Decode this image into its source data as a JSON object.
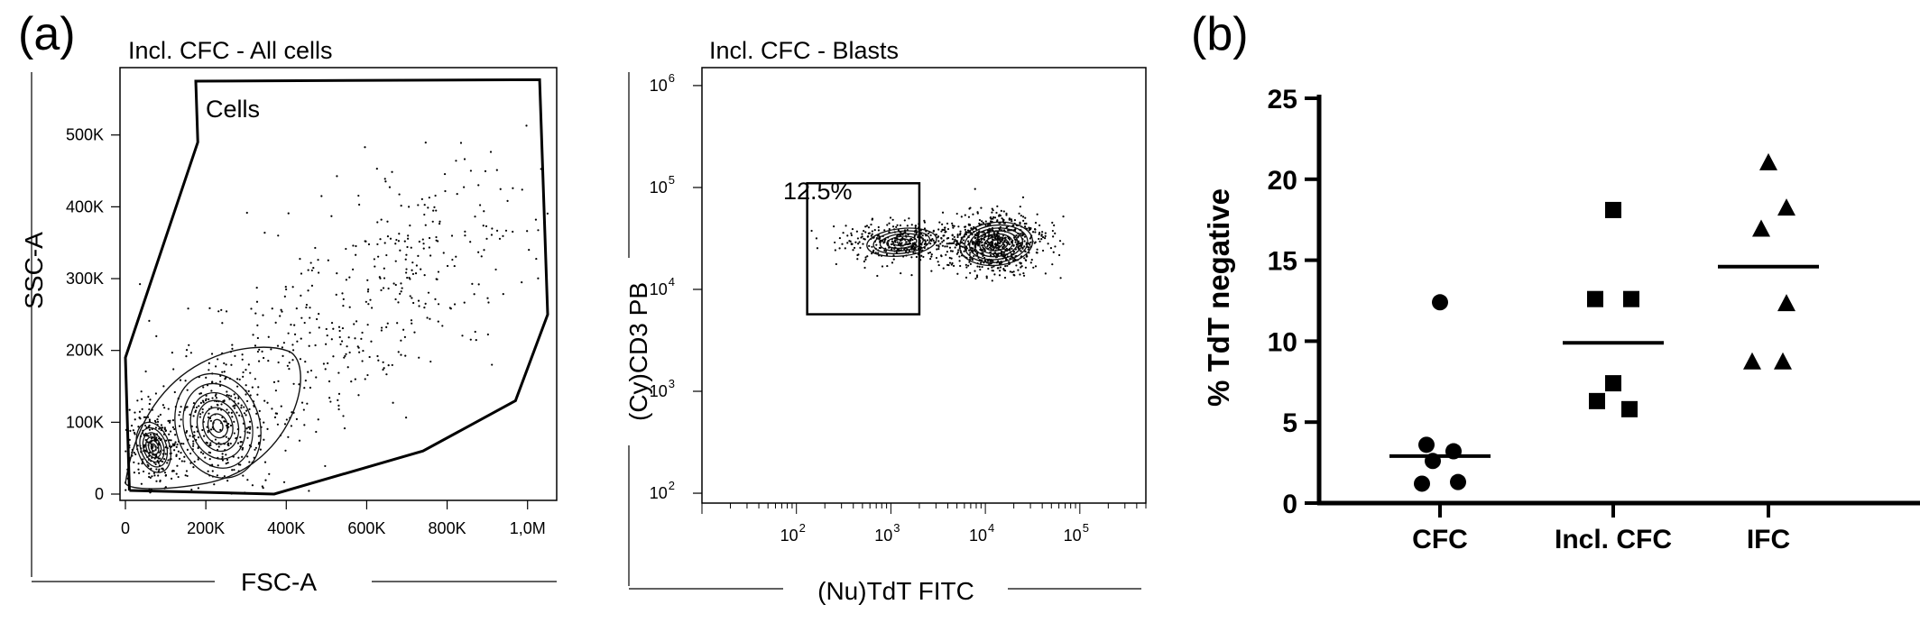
{
  "panel_labels": {
    "a": "(a)",
    "b": "(b)"
  },
  "chart_data": [
    {
      "type": "scatter",
      "title": "Incl. CFC - All cells",
      "xlabel": "FSC-A",
      "ylabel": "SSC-A",
      "xlim": [
        0,
        1050000
      ],
      "ylim": [
        0,
        580000
      ],
      "x_ticks": [
        {
          "value": 0,
          "label": "0"
        },
        {
          "value": 200000,
          "label": "200K"
        },
        {
          "value": 400000,
          "label": "400K"
        },
        {
          "value": 600000,
          "label": "600K"
        },
        {
          "value": 800000,
          "label": "800K"
        },
        {
          "value": 1000000,
          "label": "1,0M"
        }
      ],
      "y_ticks": [
        {
          "value": 0,
          "label": "0"
        },
        {
          "value": 100000,
          "label": "100K"
        },
        {
          "value": 200000,
          "label": "200K"
        },
        {
          "value": 300000,
          "label": "300K"
        },
        {
          "value": 400000,
          "label": "400K"
        },
        {
          "value": 500000,
          "label": "500K"
        }
      ],
      "gate": {
        "label": "Cells",
        "polygon": [
          [
            10000,
            5000
          ],
          [
            0,
            190000
          ],
          [
            180000,
            490000
          ],
          [
            175000,
            575000
          ],
          [
            1030000,
            577000
          ],
          [
            1050000,
            250000
          ],
          [
            970000,
            130000
          ],
          [
            740000,
            60000
          ],
          [
            370000,
            0
          ],
          [
            10000,
            5000
          ]
        ]
      },
      "populations": [
        {
          "center": [
            70000,
            65000
          ],
          "spread": [
            40000,
            35000
          ]
        },
        {
          "center": [
            230000,
            95000
          ],
          "spread": [
            75000,
            50000
          ]
        }
      ]
    },
    {
      "type": "scatter",
      "title": "Incl. CFC - Blasts",
      "xlabel": "(Nu)TdT FITC",
      "ylabel": "(Cy)CD3 PB",
      "xscale": "log",
      "yscale": "log",
      "xlim": [
        10,
        500000
      ],
      "ylim": [
        80,
        1500000
      ],
      "x_ticks": [
        {
          "value": 100,
          "base": "10",
          "exp": "2"
        },
        {
          "value": 1000,
          "base": "10",
          "exp": "3"
        },
        {
          "value": 10000,
          "base": "10",
          "exp": "4"
        },
        {
          "value": 100000,
          "base": "10",
          "exp": "5"
        }
      ],
      "y_ticks": [
        {
          "value": 100,
          "base": "10",
          "exp": "2"
        },
        {
          "value": 1000,
          "base": "10",
          "exp": "3"
        },
        {
          "value": 10000,
          "base": "10",
          "exp": "4"
        },
        {
          "value": 100000,
          "base": "10",
          "exp": "5"
        },
        {
          "value": 1000000,
          "base": "10",
          "exp": "6"
        }
      ],
      "gate": {
        "label": "12.5%",
        "x": [
          130,
          2000
        ],
        "y": [
          5700,
          110000
        ]
      },
      "populations": [
        {
          "center": [
            1300,
            29000
          ],
          "spread": [
            0.22,
            0.08
          ]
        },
        {
          "center": [
            13000,
            28000
          ],
          "spread": [
            0.22,
            0.12
          ]
        }
      ]
    },
    {
      "type": "scatter",
      "title": "",
      "ylabel": "% TdT negative",
      "ylim": [
        0,
        25
      ],
      "y_ticks": [
        0,
        5,
        10,
        15,
        20,
        25
      ],
      "categories": [
        "CFC",
        "Incl. CFC",
        "IFC"
      ],
      "series": [
        {
          "category": "CFC",
          "marker": "circle",
          "values": [
            12.4,
            3.6,
            3.2,
            2.6,
            1.2,
            1.3
          ],
          "mean": 2.9
        },
        {
          "category": "Incl. CFC",
          "marker": "square",
          "values": [
            18.1,
            12.6,
            12.6,
            7.4,
            6.3,
            5.8
          ],
          "mean": 9.9
        },
        {
          "category": "IFC",
          "marker": "triangle",
          "values": [
            21.0,
            18.2,
            16.9,
            12.3,
            8.7,
            8.7
          ],
          "mean": 14.6
        }
      ]
    }
  ]
}
